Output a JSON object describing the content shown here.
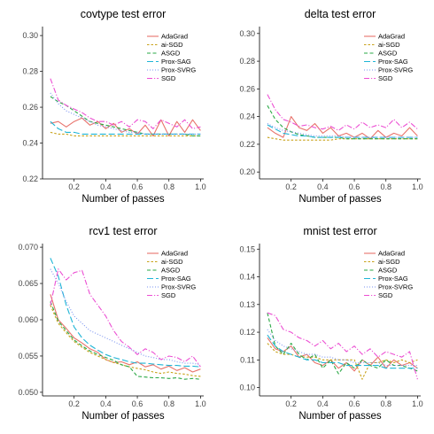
{
  "figure": {
    "colors": {
      "AdaGrad": "#e8736c",
      "ai-SGD": "#c8a21a",
      "ASGD": "#2aa845",
      "Prox-SAG": "#1fb5d6",
      "Prox-SVRG": "#7a93f0",
      "SGD": "#ec4fd3"
    },
    "line_styles": {
      "AdaGrad": "solid",
      "ai-SGD": "dashed-short",
      "ASGD": "dashed",
      "Prox-SAG": "dashed-long",
      "Prox-SVRG": "dotted",
      "SGD": "dash-dot"
    }
  },
  "chart_data": [
    {
      "type": "line",
      "title": "covtype test error",
      "xlabel": "Number of passes",
      "ylabel": "",
      "xlim": [
        0,
        1.02
      ],
      "ylim": [
        0.22,
        0.305
      ],
      "xticks": [
        0.2,
        0.4,
        0.6,
        0.8,
        1.0
      ],
      "xtick_labels": [
        "0.2",
        "0.4",
        "0.6",
        "0.8",
        "1.0"
      ],
      "yticks": [
        0.22,
        0.24,
        0.26,
        0.28,
        0.3
      ],
      "ytick_labels": [
        "0.22",
        "0.24",
        "0.26",
        "0.28",
        "0.30"
      ],
      "legend_position": "top-right",
      "x": [
        0.05,
        0.1,
        0.15,
        0.2,
        0.25,
        0.3,
        0.35,
        0.4,
        0.45,
        0.5,
        0.55,
        0.6,
        0.65,
        0.7,
        0.75,
        0.8,
        0.85,
        0.9,
        0.95,
        1.0
      ],
      "series": [
        {
          "name": "AdaGrad",
          "values": [
            0.251,
            0.252,
            0.249,
            0.252,
            0.254,
            0.25,
            0.252,
            0.248,
            0.251,
            0.246,
            0.248,
            0.245,
            0.25,
            0.244,
            0.253,
            0.244,
            0.252,
            0.246,
            0.253,
            0.247
          ]
        },
        {
          "name": "ai-SGD",
          "values": [
            0.246,
            0.245,
            0.245,
            0.244,
            0.244,
            0.244,
            0.244,
            0.244,
            0.244,
            0.244,
            0.244,
            0.244,
            0.244,
            0.244,
            0.244,
            0.244,
            0.244,
            0.244,
            0.244,
            0.244
          ]
        },
        {
          "name": "ASGD",
          "values": [
            0.266,
            0.263,
            0.261,
            0.258,
            0.255,
            0.252,
            0.251,
            0.25,
            0.249,
            0.248,
            0.247,
            0.246,
            0.245,
            0.245,
            0.245,
            0.245,
            0.245,
            0.245,
            0.244,
            0.244
          ]
        },
        {
          "name": "Prox-SAG",
          "values": [
            0.252,
            0.248,
            0.246,
            0.246,
            0.245,
            0.245,
            0.245,
            0.245,
            0.245,
            0.245,
            0.245,
            0.245,
            0.245,
            0.245,
            0.245,
            0.245,
            0.245,
            0.245,
            0.245,
            0.245
          ]
        },
        {
          "name": "Prox-SVRG",
          "values": [
            0.268,
            0.262,
            0.258,
            0.256,
            0.254,
            0.252,
            0.25,
            0.249,
            0.248,
            0.247,
            0.246,
            0.246,
            0.245,
            0.245,
            0.245,
            0.245,
            0.245,
            0.245,
            0.245,
            0.245
          ]
        },
        {
          "name": "SGD",
          "values": [
            0.276,
            0.264,
            0.261,
            0.259,
            0.257,
            0.254,
            0.252,
            0.252,
            0.25,
            0.252,
            0.249,
            0.253,
            0.252,
            0.248,
            0.253,
            0.251,
            0.249,
            0.253,
            0.248,
            0.249
          ]
        }
      ]
    },
    {
      "type": "line",
      "title": "delta test error",
      "xlabel": "Number of passes",
      "ylabel": "",
      "xlim": [
        0,
        1.02
      ],
      "ylim": [
        0.195,
        0.305
      ],
      "xticks": [
        0.2,
        0.4,
        0.6,
        0.8,
        1.0
      ],
      "xtick_labels": [
        "0.2",
        "0.4",
        "0.6",
        "0.8",
        "1.0"
      ],
      "yticks": [
        0.2,
        0.22,
        0.24,
        0.26,
        0.28,
        0.3
      ],
      "ytick_labels": [
        "0.20",
        "0.22",
        "0.24",
        "0.26",
        "0.28",
        "0.30"
      ],
      "legend_position": "top-right",
      "x": [
        0.05,
        0.1,
        0.15,
        0.2,
        0.25,
        0.3,
        0.35,
        0.4,
        0.45,
        0.5,
        0.55,
        0.6,
        0.65,
        0.7,
        0.75,
        0.8,
        0.85,
        0.9,
        0.95,
        1.0
      ],
      "series": [
        {
          "name": "AdaGrad",
          "values": [
            0.232,
            0.228,
            0.225,
            0.24,
            0.232,
            0.23,
            0.235,
            0.228,
            0.232,
            0.226,
            0.228,
            0.225,
            0.228,
            0.224,
            0.23,
            0.225,
            0.228,
            0.226,
            0.232,
            0.226
          ]
        },
        {
          "name": "ai-SGD",
          "values": [
            0.225,
            0.224,
            0.223,
            0.223,
            0.223,
            0.223,
            0.223,
            0.223,
            0.223,
            0.224,
            0.224,
            0.224,
            0.224,
            0.224,
            0.224,
            0.224,
            0.224,
            0.224,
            0.224,
            0.224
          ]
        },
        {
          "name": "ASGD",
          "values": [
            0.248,
            0.238,
            0.232,
            0.229,
            0.227,
            0.226,
            0.225,
            0.225,
            0.225,
            0.225,
            0.224,
            0.224,
            0.224,
            0.224,
            0.224,
            0.224,
            0.224,
            0.224,
            0.224,
            0.224
          ]
        },
        {
          "name": "Prox-SAG",
          "values": [
            0.234,
            0.231,
            0.228,
            0.227,
            0.226,
            0.226,
            0.225,
            0.225,
            0.225,
            0.225,
            0.225,
            0.225,
            0.225,
            0.225,
            0.225,
            0.225,
            0.225,
            0.225,
            0.225,
            0.225
          ]
        },
        {
          "name": "Prox-SVRG",
          "values": [
            0.235,
            0.232,
            0.23,
            0.229,
            0.228,
            0.227,
            0.226,
            0.226,
            0.226,
            0.226,
            0.225,
            0.225,
            0.225,
            0.225,
            0.225,
            0.225,
            0.225,
            0.225,
            0.225,
            0.225
          ]
        },
        {
          "name": "SGD",
          "values": [
            0.256,
            0.245,
            0.238,
            0.236,
            0.233,
            0.234,
            0.232,
            0.231,
            0.233,
            0.23,
            0.234,
            0.231,
            0.236,
            0.232,
            0.234,
            0.232,
            0.238,
            0.232,
            0.236,
            0.231
          ]
        }
      ]
    },
    {
      "type": "line",
      "title": "rcv1 test error",
      "xlabel": "Number of passes",
      "ylabel": "",
      "xlim": [
        0,
        1.02
      ],
      "ylim": [
        0.0495,
        0.0705
      ],
      "xticks": [
        0.2,
        0.4,
        0.6,
        0.8,
        1.0
      ],
      "xtick_labels": [
        "0.2",
        "0.4",
        "0.6",
        "0.8",
        "1.0"
      ],
      "yticks": [
        0.05,
        0.055,
        0.06,
        0.065,
        0.07
      ],
      "ytick_labels": [
        "0.050",
        "0.055",
        "0.060",
        "0.065",
        "0.070"
      ],
      "legend_position": "top-right",
      "x": [
        0.05,
        0.1,
        0.15,
        0.2,
        0.25,
        0.3,
        0.35,
        0.4,
        0.45,
        0.5,
        0.55,
        0.6,
        0.65,
        0.7,
        0.75,
        0.8,
        0.85,
        0.9,
        0.95,
        1.0
      ],
      "series": [
        {
          "name": "AdaGrad",
          "values": [
            0.0635,
            0.06,
            0.0588,
            0.0575,
            0.0568,
            0.056,
            0.0555,
            0.0545,
            0.0541,
            0.0542,
            0.0538,
            0.0542,
            0.0535,
            0.0538,
            0.0532,
            0.0536,
            0.053,
            0.0534,
            0.0528,
            0.0532
          ]
        },
        {
          "name": "ai-SGD",
          "values": [
            0.062,
            0.0595,
            0.0582,
            0.057,
            0.0562,
            0.0555,
            0.055,
            0.0545,
            0.0541,
            0.0538,
            0.0535,
            0.0533,
            0.0531,
            0.0528,
            0.0526,
            0.0528,
            0.0526,
            0.0525,
            0.0523,
            0.0522
          ]
        },
        {
          "name": "ASGD",
          "values": [
            0.0625,
            0.0598,
            0.0585,
            0.0572,
            0.0564,
            0.0557,
            0.0552,
            0.0548,
            0.0544,
            0.0538,
            0.0535,
            0.0522,
            0.0521,
            0.052,
            0.052,
            0.0519,
            0.052,
            0.0518,
            0.0519,
            0.0518
          ]
        },
        {
          "name": "Prox-SAG",
          "values": [
            0.0685,
            0.066,
            0.062,
            0.059,
            0.0575,
            0.0565,
            0.0558,
            0.0552,
            0.0548,
            0.0545,
            0.0542,
            0.054,
            0.054,
            0.0539,
            0.0538,
            0.0537,
            0.0537,
            0.0536,
            0.0536,
            0.0535
          ]
        },
        {
          "name": "Prox-SVRG",
          "values": [
            0.067,
            0.065,
            0.0625,
            0.0605,
            0.0595,
            0.0585,
            0.058,
            0.0575,
            0.057,
            0.0565,
            0.056,
            0.0555,
            0.055,
            0.0548,
            0.0545,
            0.0545,
            0.0542,
            0.054,
            0.054,
            0.0538
          ]
        },
        {
          "name": "SGD",
          "values": [
            0.062,
            0.067,
            0.0655,
            0.0665,
            0.0668,
            0.0635,
            0.062,
            0.0605,
            0.0585,
            0.057,
            0.0562,
            0.0552,
            0.056,
            0.0555,
            0.0545,
            0.055,
            0.0548,
            0.0542,
            0.055,
            0.0535
          ]
        }
      ]
    },
    {
      "type": "line",
      "title": "mnist test error",
      "xlabel": "Number of passes",
      "ylabel": "",
      "xlim": [
        0,
        1.02
      ],
      "ylim": [
        0.097,
        0.152
      ],
      "xticks": [
        0.2,
        0.4,
        0.6,
        0.8,
        1.0
      ],
      "xtick_labels": [
        "0.2",
        "0.4",
        "0.6",
        "0.8",
        "1.0"
      ],
      "yticks": [
        0.1,
        0.11,
        0.12,
        0.13,
        0.14,
        0.15
      ],
      "ytick_labels": [
        "0.10",
        "0.11",
        "0.12",
        "0.13",
        "0.14",
        "0.15"
      ],
      "legend_position": "top-right",
      "x": [
        0.05,
        0.1,
        0.15,
        0.2,
        0.25,
        0.3,
        0.35,
        0.4,
        0.45,
        0.5,
        0.55,
        0.6,
        0.65,
        0.7,
        0.75,
        0.8,
        0.85,
        0.9,
        0.95,
        1.0
      ],
      "series": [
        {
          "name": "AdaGrad",
          "values": [
            0.118,
            0.114,
            0.113,
            0.115,
            0.111,
            0.112,
            0.109,
            0.108,
            0.11,
            0.107,
            0.109,
            0.106,
            0.11,
            0.108,
            0.111,
            0.107,
            0.11,
            0.108,
            0.109,
            0.107
          ]
        },
        {
          "name": "ai-SGD",
          "values": [
            0.116,
            0.113,
            0.112,
            0.112,
            0.111,
            0.111,
            0.111,
            0.11,
            0.11,
            0.11,
            0.11,
            0.11,
            0.103,
            0.109,
            0.109,
            0.11,
            0.109,
            0.11,
            0.109,
            0.11
          ]
        },
        {
          "name": "ASGD",
          "values": [
            0.127,
            0.115,
            0.112,
            0.116,
            0.112,
            0.11,
            0.112,
            0.107,
            0.11,
            0.105,
            0.109,
            0.107,
            0.11,
            0.108,
            0.107,
            0.11,
            0.108,
            0.108,
            0.107,
            0.106
          ]
        },
        {
          "name": "Prox-SAG",
          "values": [
            0.119,
            0.115,
            0.113,
            0.112,
            0.111,
            0.11,
            0.11,
            0.109,
            0.109,
            0.109,
            0.108,
            0.108,
            0.108,
            0.108,
            0.108,
            0.107,
            0.107,
            0.107,
            0.107,
            0.107
          ]
        },
        {
          "name": "Prox-SVRG",
          "values": [
            0.121,
            0.117,
            0.115,
            0.114,
            0.113,
            0.112,
            0.112,
            0.111,
            0.111,
            0.11,
            0.11,
            0.109,
            0.109,
            0.109,
            0.109,
            0.108,
            0.108,
            0.108,
            0.108,
            0.108
          ]
        },
        {
          "name": "SGD",
          "values": [
            0.127,
            0.126,
            0.121,
            0.12,
            0.118,
            0.117,
            0.115,
            0.117,
            0.114,
            0.116,
            0.113,
            0.115,
            0.112,
            0.114,
            0.111,
            0.113,
            0.112,
            0.111,
            0.113,
            0.103
          ]
        }
      ]
    }
  ]
}
